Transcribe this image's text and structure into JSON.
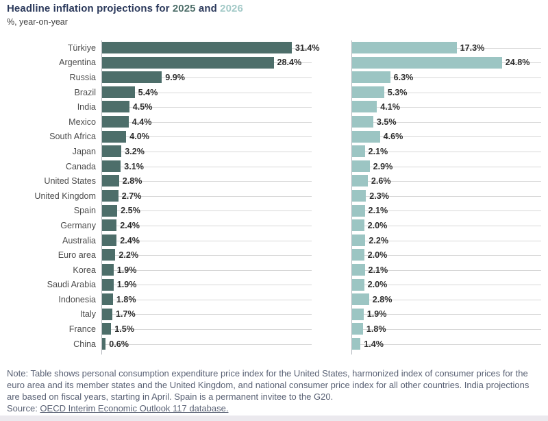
{
  "title": {
    "prefix": "Headline inflation projections for ",
    "year1": "2025",
    "connector": " and ",
    "year2": "2026"
  },
  "subtitle": "%, year-on-year",
  "colors": {
    "title_text": "#2c3a5c",
    "year1_accent": "#4d6e69",
    "year2_accent": "#a2c9c7",
    "bar_2025": "#4d6e6a",
    "bar_2026": "#9cc5c3",
    "value_label": "#2e2e2e",
    "country_label": "#4b4b4b",
    "gridline": "#d7d7d7",
    "axis_line": "#b3b7bd",
    "note_text": "#596174"
  },
  "chart_data": {
    "type": "bar",
    "orientation": "horizontal",
    "grid": true,
    "categories": [
      "Türkiye",
      "Argentina",
      "Russia",
      "Brazil",
      "India",
      "Mexico",
      "South Africa",
      "Japan",
      "Canada",
      "United States",
      "United Kingdom",
      "Spain",
      "Germany",
      "Australia",
      "Euro area",
      "Korea",
      "Saudi Arabia",
      "Indonesia",
      "Italy",
      "France",
      "China"
    ],
    "series": [
      {
        "name": "2025",
        "color": "#4d6e6a",
        "values": [
          31.4,
          28.4,
          9.9,
          5.4,
          4.5,
          4.4,
          4.0,
          3.2,
          3.1,
          2.8,
          2.7,
          2.5,
          2.4,
          2.4,
          2.2,
          1.9,
          1.9,
          1.8,
          1.7,
          1.5,
          0.6
        ],
        "labels": [
          "31.4%",
          "28.4%",
          "9.9%",
          "5.4%",
          "4.5%",
          "4.4%",
          "4.0%",
          "3.2%",
          "3.1%",
          "2.8%",
          "2.7%",
          "2.5%",
          "2.4%",
          "2.4%",
          "2.2%",
          "1.9%",
          "1.9%",
          "1.8%",
          "1.7%",
          "1.5%",
          "0.6%"
        ]
      },
      {
        "name": "2026",
        "color": "#9cc5c3",
        "values": [
          17.3,
          24.8,
          6.3,
          5.3,
          4.1,
          3.5,
          4.6,
          2.1,
          2.9,
          2.6,
          2.3,
          2.1,
          2.0,
          2.2,
          2.0,
          2.1,
          2.0,
          2.8,
          1.9,
          1.8,
          1.4
        ],
        "labels": [
          "17.3%",
          "24.8%",
          "6.3%",
          "5.3%",
          "4.1%",
          "3.5%",
          "4.6%",
          "2.1%",
          "2.9%",
          "2.6%",
          "2.3%",
          "2.1%",
          "2.0%",
          "2.2%",
          "2.0%",
          "2.1%",
          "2.0%",
          "2.8%",
          "1.9%",
          "1.8%",
          "1.4%"
        ]
      }
    ],
    "xlim_left": [
      0,
      34.8
    ],
    "xlim_right": [
      0,
      31.4
    ]
  },
  "note": {
    "body": "Note: Table shows personal consumption expenditure price index for the United States, harmonized index of consumer prices for the euro area and its member states and the United Kingdom, and national consumer price index for all other countries. India projections are based on fiscal years, starting in April. Spain is a permanent invitee to the G20.",
    "source_prefix": "Source: ",
    "source_link": "OECD Interim Economic Outlook 117 database."
  }
}
